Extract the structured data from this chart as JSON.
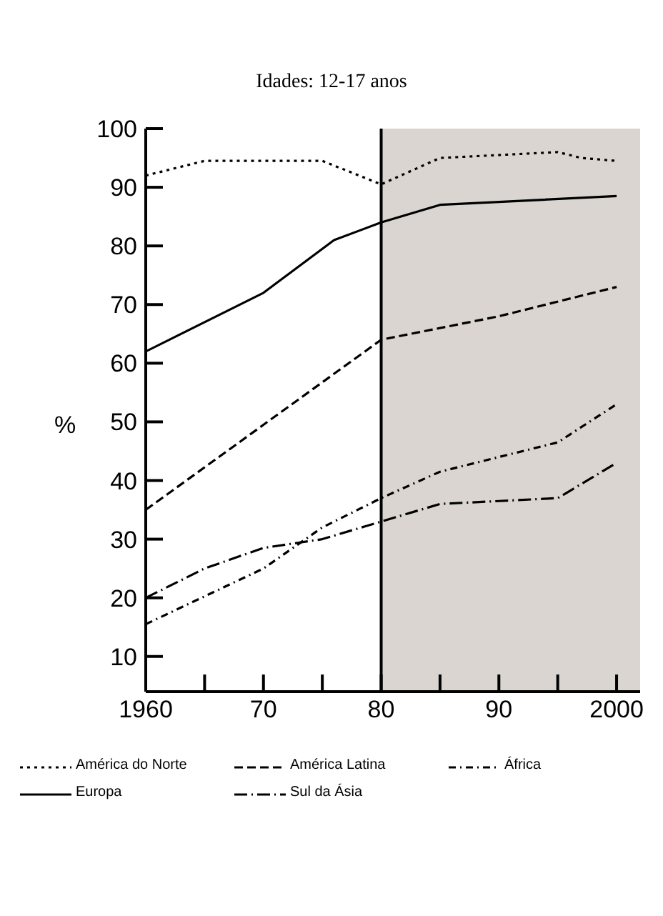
{
  "chart_data": {
    "type": "line",
    "title": "Idades: 12-17 anos",
    "ylabel": "%",
    "xlim": [
      1960,
      2002
    ],
    "xticks": [
      {
        "value": 1960,
        "label": "1960"
      },
      {
        "value": 1965,
        "label": null
      },
      {
        "value": 1970,
        "label": "70"
      },
      {
        "value": 1975,
        "label": null
      },
      {
        "value": 1980,
        "label": "80"
      },
      {
        "value": 1985,
        "label": null
      },
      {
        "value": 1990,
        "label": "90"
      },
      {
        "value": 1995,
        "label": null
      },
      {
        "value": 2000,
        "label": "2000"
      }
    ],
    "ylim": [
      4,
      100
    ],
    "yticks": [
      10,
      20,
      30,
      40,
      50,
      60,
      70,
      80,
      90,
      100
    ],
    "grid": false,
    "legend": "bottom",
    "marker": "none",
    "ref_lines": [
      {
        "axis": "x",
        "value": 1980,
        "color": "#000000",
        "line_style": "solid"
      }
    ],
    "bands": [
      {
        "axis": "x",
        "from": 1980,
        "to": 2002,
        "color": "#dad5d0"
      }
    ],
    "series": [
      {
        "name": "América do Norte",
        "color": "#000000",
        "line_style": "dotted",
        "x": [
          1960,
          1965,
          1975,
          1980,
          1985,
          1995,
          1997,
          2000
        ],
        "values": [
          92,
          94.5,
          94.5,
          90.5,
          95,
          96,
          95,
          94.5
        ]
      },
      {
        "name": "América Latina",
        "color": "#000000",
        "line_style": "dashed",
        "x": [
          1960,
          1970,
          1980,
          1990,
          2000
        ],
        "values": [
          35,
          49.5,
          64,
          68,
          73
        ]
      },
      {
        "name": "África",
        "color": "#000000",
        "line_style": "dashdot",
        "x": [
          1960,
          1970,
          1975,
          1980,
          1985,
          1990,
          1995,
          2000
        ],
        "values": [
          15.5,
          25,
          32,
          37,
          41.5,
          44,
          46.5,
          53
        ]
      },
      {
        "name": "Europa",
        "color": "#000000",
        "line_style": "solid",
        "x": [
          1960,
          1970,
          1976,
          1980,
          1985,
          1990,
          2000
        ],
        "values": [
          62,
          72,
          81,
          84,
          87,
          87.5,
          88.5
        ]
      },
      {
        "name": "Sul da Ásia",
        "color": "#000000",
        "line_style": "longdashdot",
        "x": [
          1960,
          1965,
          1970,
          1975,
          1980,
          1985,
          1990,
          1995,
          2000
        ],
        "values": [
          20,
          25,
          28.5,
          30,
          33,
          36,
          36.5,
          37,
          43
        ]
      }
    ]
  }
}
